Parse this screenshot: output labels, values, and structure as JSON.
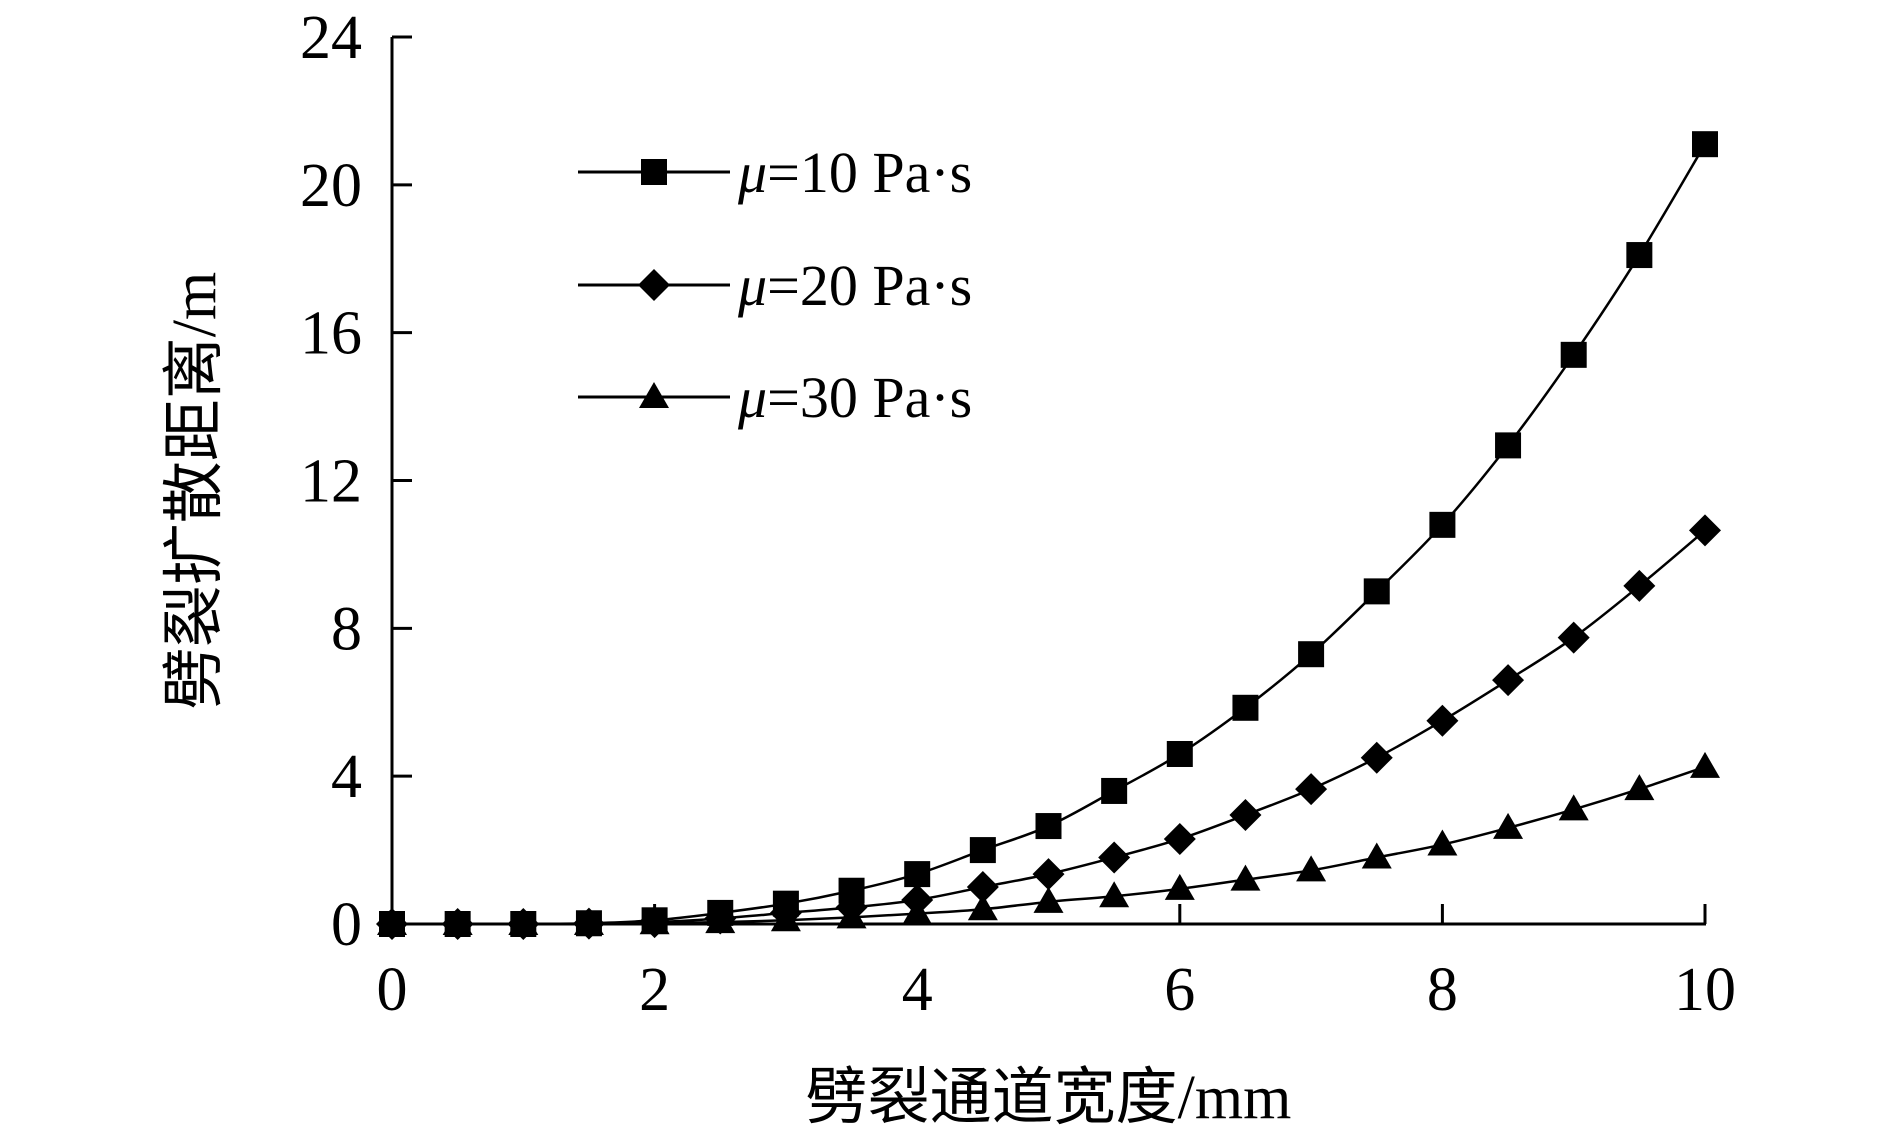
{
  "chart_data": {
    "type": "line",
    "title": "",
    "xlabel": "劈裂通道宽度/mm",
    "ylabel": "劈裂扩散距离/m",
    "xlim": [
      0,
      10
    ],
    "ylim": [
      0,
      24
    ],
    "xticks": [
      "0",
      "2",
      "4",
      "6",
      "8",
      "10"
    ],
    "yticks": [
      "0",
      "4",
      "8",
      "12",
      "16",
      "20",
      "24"
    ],
    "grid": false,
    "legend_position": "top-left",
    "x": [
      0,
      0.5,
      1,
      1.5,
      2,
      2.5,
      3,
      3.5,
      4,
      4.5,
      5,
      5.5,
      6,
      6.5,
      7,
      7.5,
      8,
      8.5,
      9,
      9.5,
      10
    ],
    "series": [
      {
        "name_symbol": "μ",
        "name_rest": "=10 Pa·s",
        "marker": "square",
        "values": [
          0,
          0,
          0,
          0.02,
          0.1,
          0.3,
          0.55,
          0.9,
          1.35,
          2.0,
          2.65,
          3.6,
          4.6,
          5.85,
          7.3,
          9.0,
          10.8,
          12.95,
          15.4,
          18.1,
          21.1
        ]
      },
      {
        "name_symbol": "μ",
        "name_rest": "=20 Pa·s",
        "marker": "diamond",
        "values": [
          0,
          0,
          0,
          0.01,
          0.05,
          0.15,
          0.3,
          0.45,
          0.65,
          1.0,
          1.35,
          1.8,
          2.3,
          2.95,
          3.65,
          4.5,
          5.5,
          6.6,
          7.75,
          9.15,
          10.65
        ]
      },
      {
        "name_symbol": "μ",
        "name_rest": "=30 Pa·s",
        "marker": "triangle",
        "values": [
          0,
          0,
          0,
          0,
          0.02,
          0.05,
          0.1,
          0.18,
          0.28,
          0.4,
          0.6,
          0.75,
          0.95,
          1.2,
          1.45,
          1.8,
          2.15,
          2.6,
          3.1,
          3.65,
          4.25
        ]
      }
    ]
  }
}
